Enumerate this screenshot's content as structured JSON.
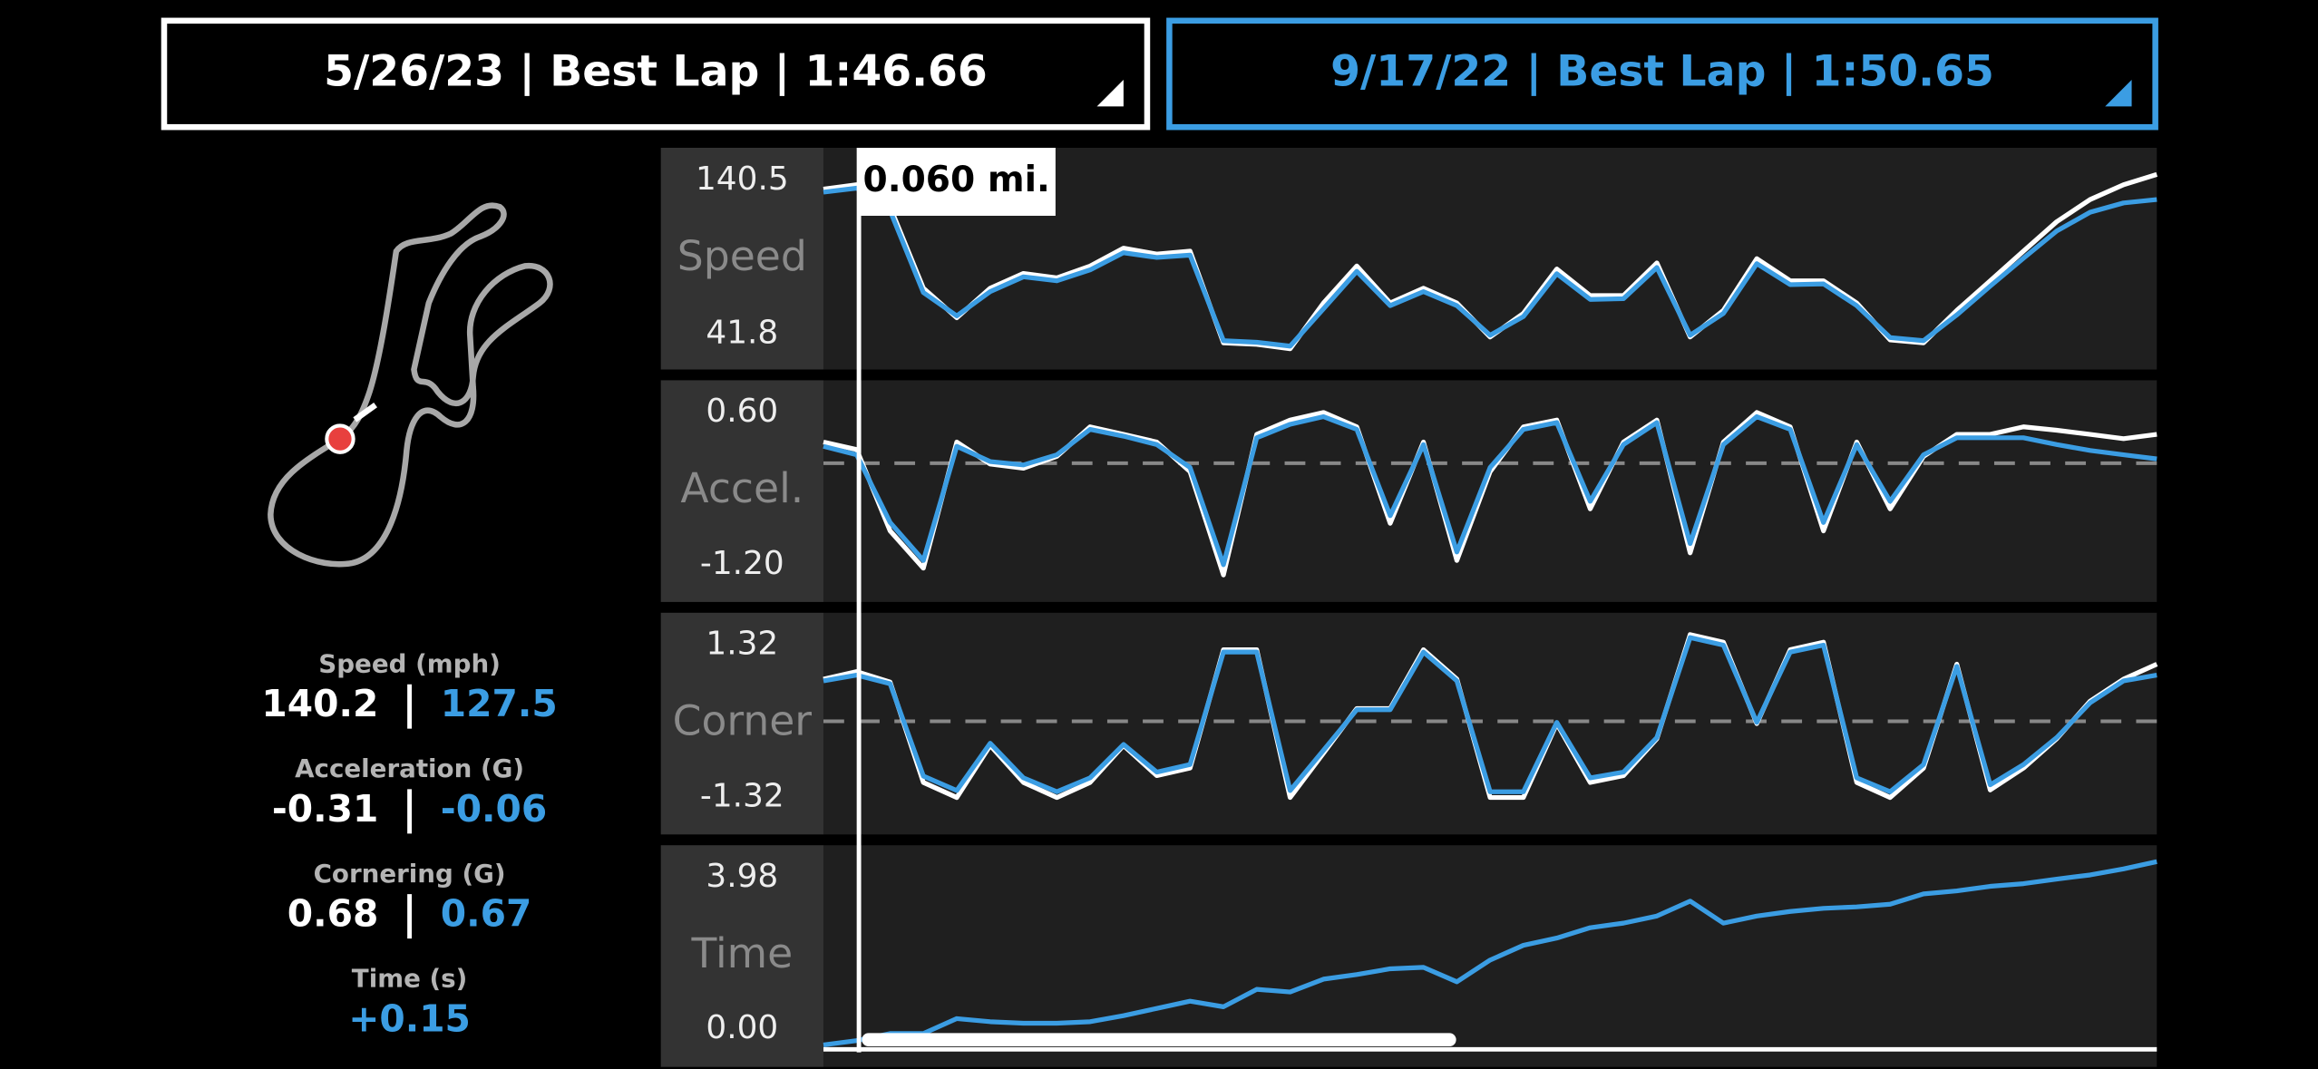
{
  "lap_selectors": [
    {
      "label": "5/26/23 | Best Lap | 1:46.66",
      "color": "#ffffff"
    },
    {
      "label": "9/17/22 | Best Lap | 1:50.65",
      "color": "#3b9de3"
    }
  ],
  "cursor_label": "0.060 mi.",
  "stats": [
    {
      "title": "Speed (mph)",
      "values": [
        "140.2",
        "127.5"
      ]
    },
    {
      "title": "Acceleration (G)",
      "values": [
        "-0.31",
        "-0.06"
      ]
    },
    {
      "title": "Cornering (G)",
      "values": [
        "0.68",
        "0.67"
      ]
    },
    {
      "title": "Time (s)",
      "values": [
        "+0.15"
      ]
    }
  ],
  "panels": [
    {
      "type": "line",
      "name": "Speed",
      "ylim": [
        19,
        161.4
      ],
      "yticks": [
        140.5,
        41.8
      ],
      "series": [
        {
          "color": "#ffffff",
          "values": [
            134.8,
            137.7,
            123.4,
            71.2,
            52.2,
            71.2,
            80.7,
            77.9,
            85.5,
            96.9,
            93.1,
            95,
            36.1,
            35.1,
            32.3,
            61.7,
            85.5,
            61.7,
            71.2,
            61.7,
            39.9,
            55.1,
            83.6,
            66.5,
            66.5,
            87.4,
            39.9,
            57,
            90.2,
            76,
            76,
            61.7,
            38,
            36.1,
            57,
            76,
            95,
            113.9,
            128.2,
            137.7,
            144.3
          ]
        },
        {
          "color": "#3b9de3",
          "values": [
            132.9,
            135.5,
            121,
            68.5,
            53.5,
            69,
            78.5,
            76,
            83,
            94,
            91,
            92.5,
            37.5,
            36.5,
            34,
            58,
            82,
            60,
            69,
            60,
            41,
            53,
            80.5,
            64,
            64.5,
            84.5,
            41,
            55,
            87,
            73.5,
            74,
            60,
            39.5,
            37.5,
            54,
            72.5,
            90.5,
            108,
            120,
            126,
            128.2
          ]
        }
      ]
    },
    {
      "type": "line",
      "name": "Accel.",
      "ylim": [
        -1.64,
        0.98
      ],
      "yticks": [
        {
          "value": 0.6,
          "label": "0.60"
        },
        {
          "value": -1.2,
          "label": "-1.20"
        }
      ],
      "reference_line": 0,
      "series": [
        {
          "color": "#ffffff",
          "values": [
            0.25,
            0.16,
            -0.8,
            -1.24,
            0.25,
            -0.01,
            -0.06,
            0.08,
            0.43,
            0.34,
            0.25,
            -0.1,
            -1.32,
            0.34,
            0.51,
            0.6,
            0.43,
            -0.71,
            0.25,
            -1.15,
            -0.1,
            0.43,
            0.51,
            -0.54,
            0.25,
            0.51,
            -1.06,
            0.25,
            0.6,
            0.43,
            -0.8,
            0.25,
            -0.54,
            0.08,
            0.34,
            0.34,
            0.43,
            0.39,
            0.34,
            0.29,
            0.34
          ]
        },
        {
          "color": "#3b9de3",
          "values": [
            0.2,
            0.1,
            -0.7,
            -1.15,
            0.2,
            0.02,
            -0.02,
            0.1,
            0.4,
            0.32,
            0.22,
            -0.05,
            -1.2,
            0.3,
            0.46,
            0.55,
            0.4,
            -0.62,
            0.22,
            -1.05,
            -0.05,
            0.4,
            0.48,
            -0.45,
            0.22,
            0.48,
            -0.95,
            0.22,
            0.55,
            0.4,
            -0.7,
            0.22,
            -0.45,
            0.1,
            0.3,
            0.3,
            0.3,
            0.22,
            0.15,
            0.1,
            0.05
          ]
        }
      ]
    },
    {
      "type": "line",
      "name": "Corner",
      "ylim": [
        -1.96,
        1.88
      ],
      "yticks": [
        1.32,
        -1.32
      ],
      "reference_line": 0,
      "series": [
        {
          "color": "#ffffff",
          "values": [
            0.73,
            0.86,
            0.68,
            -1.06,
            -1.32,
            -0.42,
            -1.06,
            -1.32,
            -1.06,
            -0.42,
            -0.94,
            -0.81,
            1.24,
            1.24,
            -1.32,
            -0.55,
            0.22,
            0.22,
            1.24,
            0.73,
            -1.32,
            -1.32,
            -0.04,
            -1.06,
            -0.94,
            -0.3,
            1.5,
            1.37,
            -0.04,
            1.24,
            1.37,
            -1.06,
            -1.32,
            -0.81,
            0.99,
            -1.19,
            -0.81,
            -0.3,
            0.35,
            0.73,
            0.99
          ]
        },
        {
          "color": "#3b9de3",
          "values": [
            0.7,
            0.8,
            0.65,
            -0.95,
            -1.2,
            -0.38,
            -0.98,
            -1.22,
            -0.98,
            -0.4,
            -0.88,
            -0.75,
            1.2,
            1.2,
            -1.2,
            -0.5,
            0.2,
            0.2,
            1.2,
            0.7,
            -1.22,
            -1.22,
            -0.02,
            -0.98,
            -0.88,
            -0.28,
            1.45,
            1.32,
            -0.02,
            1.2,
            1.32,
            -0.98,
            -1.22,
            -0.75,
            0.95,
            -1.1,
            -0.75,
            -0.28,
            0.32,
            0.7,
            0.8
          ]
        }
      ]
    },
    {
      "type": "line",
      "name": "Time",
      "ylim": [
        -1,
        4.83
      ],
      "yticks": [
        3.98,
        {
          "value": 0,
          "label": "0.00"
        }
      ],
      "series": [
        {
          "color": "#3b9de3",
          "values": [
            -0.42,
            -0.31,
            -0.12,
            -0.12,
            0.27,
            0.19,
            0.15,
            0.15,
            0.19,
            0.35,
            0.54,
            0.73,
            0.58,
            1.04,
            0.97,
            1.31,
            1.43,
            1.58,
            1.62,
            1.24,
            1.81,
            2.2,
            2.39,
            2.66,
            2.78,
            2.97,
            3.36,
            2.78,
            2.97,
            3.09,
            3.17,
            3.21,
            3.28,
            3.55,
            3.63,
            3.75,
            3.82,
            3.94,
            4.05,
            4.21,
            4.4
          ]
        }
      ]
    }
  ]
}
